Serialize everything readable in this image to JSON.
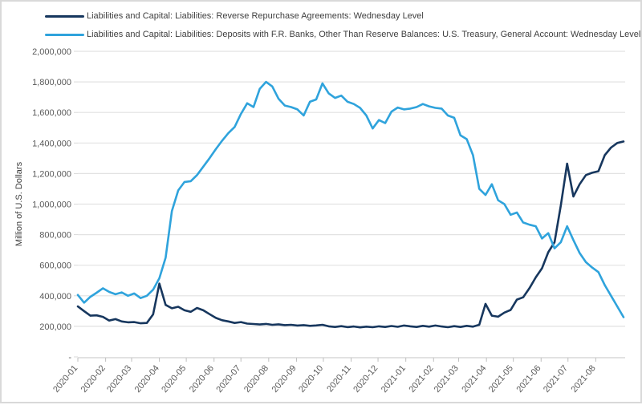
{
  "legend": [
    {
      "label": "Liabilities and Capital: Liabilities: Reverse Repurchase Agreements: Wednesday Level",
      "color": "#17375e"
    },
    {
      "label": "Liabilities and Capital: Liabilities: Deposits with F.R. Banks, Other Than Reserve Balances: U.S. Treasury, General Account: Wednesday Level",
      "color": "#2fa3dc"
    }
  ],
  "y_axis": {
    "title": "Million of U.S. Dollars",
    "tick_labels": [
      "2,000,000",
      "1,800,000",
      "1,600,000",
      "1,400,000",
      "1,200,000",
      "1,000,000",
      "800,000",
      "600,000",
      "400,000",
      "200,000",
      "-"
    ],
    "tick_values": [
      2000000,
      1800000,
      1600000,
      1400000,
      1200000,
      1000000,
      800000,
      600000,
      400000,
      200000,
      0
    ]
  },
  "x_axis": {
    "tick_labels": [
      "2020-01",
      "2020-02",
      "2020-03",
      "2020-04",
      "2020-05",
      "2020-06",
      "2020-07",
      "2020-08",
      "2020-09",
      "2020-10",
      "2020-11",
      "2020-12",
      "2021-01",
      "2021-02",
      "2021-03",
      "2021-04",
      "2021-05",
      "2021-06",
      "2021-07",
      "2021-08"
    ]
  },
  "colors": {
    "grid": "#e2e2e2",
    "axis": "#d9d9d9",
    "tick": "#bfbfbf",
    "tick_text": "#595959",
    "label_text": "#404040"
  },
  "chart_data": {
    "type": "line",
    "ylabel": "Million of U.S. Dollars",
    "ylim": [
      0,
      2000000
    ],
    "grid": true,
    "legend_position": "top-left",
    "x": [
      "2020-01-01",
      "2020-01-08",
      "2020-01-15",
      "2020-01-22",
      "2020-01-29",
      "2020-02-05",
      "2020-02-12",
      "2020-02-19",
      "2020-02-26",
      "2020-03-04",
      "2020-03-11",
      "2020-03-18",
      "2020-03-25",
      "2020-04-01",
      "2020-04-08",
      "2020-04-15",
      "2020-04-22",
      "2020-04-29",
      "2020-05-06",
      "2020-05-13",
      "2020-05-20",
      "2020-05-27",
      "2020-06-03",
      "2020-06-10",
      "2020-06-17",
      "2020-06-24",
      "2020-07-01",
      "2020-07-08",
      "2020-07-15",
      "2020-07-22",
      "2020-07-29",
      "2020-08-05",
      "2020-08-12",
      "2020-08-19",
      "2020-08-26",
      "2020-09-02",
      "2020-09-09",
      "2020-09-16",
      "2020-09-23",
      "2020-09-30",
      "2020-10-07",
      "2020-10-14",
      "2020-10-21",
      "2020-10-28",
      "2020-11-04",
      "2020-11-11",
      "2020-11-18",
      "2020-11-25",
      "2020-12-02",
      "2020-12-09",
      "2020-12-16",
      "2020-12-23",
      "2020-12-30",
      "2021-01-06",
      "2021-01-13",
      "2021-01-20",
      "2021-01-27",
      "2021-02-03",
      "2021-02-10",
      "2021-02-17",
      "2021-02-24",
      "2021-03-03",
      "2021-03-10",
      "2021-03-17",
      "2021-03-24",
      "2021-03-31",
      "2021-04-07",
      "2021-04-14",
      "2021-04-21",
      "2021-04-28",
      "2021-05-05",
      "2021-05-12",
      "2021-05-19",
      "2021-05-26",
      "2021-06-02",
      "2021-06-09",
      "2021-06-16",
      "2021-06-23",
      "2021-06-30",
      "2021-07-07",
      "2021-07-14",
      "2021-07-21",
      "2021-07-28",
      "2021-08-04",
      "2021-08-11",
      "2021-08-18",
      "2021-08-25",
      "2021-09-01"
    ],
    "series": [
      {
        "name": "Liabilities and Capital: Liabilities: Reverse Repurchase Agreements: Wednesday Level",
        "color": "#17375e",
        "values": [
          330000,
          300000,
          270000,
          272000,
          262000,
          238000,
          247000,
          232000,
          226000,
          228000,
          220000,
          222000,
          278000,
          480000,
          340000,
          318000,
          328000,
          305000,
          295000,
          320000,
          305000,
          280000,
          255000,
          240000,
          232000,
          222000,
          228000,
          218000,
          215000,
          212000,
          216000,
          210000,
          213000,
          208000,
          210000,
          205000,
          208000,
          203000,
          206000,
          210000,
          200000,
          196000,
          201000,
          195000,
          199000,
          193000,
          198000,
          194000,
          200000,
          196000,
          202000,
          197000,
          205000,
          200000,
          196000,
          203000,
          198000,
          205000,
          199000,
          194000,
          201000,
          196000,
          203000,
          198000,
          210000,
          347000,
          270000,
          263000,
          290000,
          307000,
          375000,
          390000,
          450000,
          520000,
          580000,
          685000,
          750000,
          990000,
          1265000,
          1050000,
          1130000,
          1190000,
          1205000,
          1215000,
          1320000,
          1370000,
          1400000,
          1410000
        ]
      },
      {
        "name": "Liabilities and Capital: Liabilities: Deposits with F.R. Banks, Other Than Reserve Balances: U.S. Treasury, General Account: Wednesday Level",
        "color": "#2fa3dc",
        "values": [
          405000,
          355000,
          393000,
          420000,
          449000,
          425000,
          410000,
          422000,
          400000,
          415000,
          385000,
          400000,
          440000,
          515000,
          650000,
          955000,
          1090000,
          1145000,
          1150000,
          1190000,
          1245000,
          1300000,
          1360000,
          1415000,
          1465000,
          1505000,
          1590000,
          1660000,
          1635000,
          1755000,
          1800000,
          1770000,
          1690000,
          1645000,
          1635000,
          1620000,
          1580000,
          1670000,
          1685000,
          1790000,
          1725000,
          1695000,
          1710000,
          1670000,
          1655000,
          1630000,
          1580000,
          1495000,
          1550000,
          1530000,
          1605000,
          1632000,
          1620000,
          1625000,
          1635000,
          1655000,
          1640000,
          1630000,
          1625000,
          1580000,
          1565000,
          1450000,
          1425000,
          1320000,
          1100000,
          1060000,
          1130000,
          1025000,
          1000000,
          930000,
          945000,
          880000,
          865000,
          855000,
          775000,
          810000,
          710000,
          750000,
          855000,
          765000,
          680000,
          620000,
          585000,
          555000,
          470000,
          400000,
          330000,
          260000
        ]
      }
    ]
  }
}
